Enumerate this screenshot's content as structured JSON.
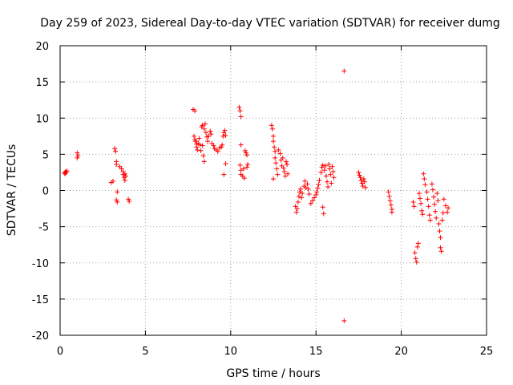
{
  "chart_data": {
    "type": "scatter",
    "title": "Day 259 of 2023, Sidereal Day-to-day VTEC variation (SDTVAR) for receiver dumg",
    "xlabel": "GPS time / hours",
    "ylabel": "SDTVAR / TECUs",
    "xlim": [
      0,
      25
    ],
    "ylim": [
      -20,
      20
    ],
    "xticks": [
      0,
      5,
      10,
      15,
      20,
      25
    ],
    "yticks": [
      -20,
      -15,
      -10,
      -5,
      0,
      5,
      10,
      15,
      20
    ],
    "grid": true,
    "marker": "+",
    "color": "#ff0000",
    "series": [
      {
        "name": "SDTVAR",
        "points": [
          [
            0.25,
            2.4
          ],
          [
            0.3,
            2.6
          ],
          [
            0.35,
            2.5
          ],
          [
            0.4,
            2.7
          ],
          [
            0.3,
            2.3
          ],
          [
            1.0,
            5.2
          ],
          [
            1.05,
            4.8
          ],
          [
            1.0,
            4.5
          ],
          [
            3.0,
            1.1
          ],
          [
            3.1,
            1.3
          ],
          [
            3.2,
            5.8
          ],
          [
            3.25,
            5.4
          ],
          [
            3.3,
            4.0
          ],
          [
            3.3,
            3.6
          ],
          [
            3.35,
            -0.2
          ],
          [
            3.3,
            -1.3
          ],
          [
            3.35,
            -1.6
          ],
          [
            3.5,
            3.3
          ],
          [
            3.6,
            3.0
          ],
          [
            3.7,
            2.6
          ],
          [
            3.7,
            2.2
          ],
          [
            3.75,
            1.8
          ],
          [
            3.8,
            1.4
          ],
          [
            3.85,
            2.0
          ],
          [
            3.8,
            2.3
          ],
          [
            4.0,
            -1.2
          ],
          [
            4.05,
            -1.5
          ],
          [
            7.8,
            11.2
          ],
          [
            7.9,
            11.0
          ],
          [
            7.85,
            7.5
          ],
          [
            7.9,
            7.0
          ],
          [
            7.95,
            6.8
          ],
          [
            8.0,
            6.4
          ],
          [
            8.0,
            6.0
          ],
          [
            8.05,
            5.6
          ],
          [
            8.1,
            6.5
          ],
          [
            8.15,
            7.2
          ],
          [
            8.2,
            6.3
          ],
          [
            8.25,
            5.5
          ],
          [
            8.3,
            8.8
          ],
          [
            8.35,
            9.0
          ],
          [
            8.35,
            6.2
          ],
          [
            8.4,
            4.8
          ],
          [
            8.45,
            4.0
          ],
          [
            8.45,
            8.5
          ],
          [
            8.5,
            9.2
          ],
          [
            8.55,
            8.0
          ],
          [
            8.6,
            7.4
          ],
          [
            8.65,
            6.8
          ],
          [
            8.7,
            7.5
          ],
          [
            8.8,
            8.2
          ],
          [
            8.85,
            7.8
          ],
          [
            8.9,
            6.5
          ],
          [
            9.0,
            6.2
          ],
          [
            9.05,
            5.8
          ],
          [
            9.15,
            5.6
          ],
          [
            9.25,
            5.4
          ],
          [
            9.35,
            5.9
          ],
          [
            9.45,
            6.0
          ],
          [
            9.5,
            6.3
          ],
          [
            9.55,
            7.5
          ],
          [
            9.6,
            8.0
          ],
          [
            9.65,
            8.3
          ],
          [
            9.7,
            7.6
          ],
          [
            9.7,
            3.7
          ],
          [
            9.6,
            2.2
          ],
          [
            10.5,
            11.5
          ],
          [
            10.55,
            11.0
          ],
          [
            10.6,
            10.2
          ],
          [
            10.6,
            6.3
          ],
          [
            10.55,
            3.5
          ],
          [
            10.6,
            2.8
          ],
          [
            10.6,
            2.2
          ],
          [
            10.7,
            2.0
          ],
          [
            10.75,
            3.0
          ],
          [
            10.8,
            1.7
          ],
          [
            10.85,
            5.5
          ],
          [
            10.9,
            5.2
          ],
          [
            10.95,
            4.9
          ],
          [
            10.95,
            3.2
          ],
          [
            11.0,
            3.6
          ],
          [
            12.4,
            9.0
          ],
          [
            12.45,
            8.5
          ],
          [
            12.5,
            7.5
          ],
          [
            12.5,
            6.8
          ],
          [
            12.55,
            6.0
          ],
          [
            12.6,
            5.4
          ],
          [
            12.6,
            4.5
          ],
          [
            12.65,
            3.8
          ],
          [
            12.7,
            3.0
          ],
          [
            12.75,
            2.2
          ],
          [
            12.5,
            1.6
          ],
          [
            12.8,
            5.6
          ],
          [
            12.9,
            5.1
          ],
          [
            12.95,
            4.2
          ],
          [
            13.0,
            3.4
          ],
          [
            13.05,
            4.5
          ],
          [
            13.1,
            3.1
          ],
          [
            13.15,
            2.6
          ],
          [
            13.2,
            2.0
          ],
          [
            13.25,
            4.0
          ],
          [
            13.3,
            3.6
          ],
          [
            13.35,
            2.3
          ],
          [
            13.8,
            -2.2
          ],
          [
            13.85,
            -3.0
          ],
          [
            13.9,
            -2.5
          ],
          [
            13.95,
            -1.6
          ],
          [
            14.0,
            -0.8
          ],
          [
            14.05,
            -0.2
          ],
          [
            14.1,
            0.2
          ],
          [
            14.15,
            -1.0
          ],
          [
            14.2,
            -0.4
          ],
          [
            14.3,
            0.6
          ],
          [
            14.35,
            1.3
          ],
          [
            14.4,
            0.4
          ],
          [
            14.5,
            0.9
          ],
          [
            14.55,
            0.2
          ],
          [
            14.6,
            -0.5
          ],
          [
            14.7,
            -1.8
          ],
          [
            14.8,
            -1.4
          ],
          [
            14.9,
            -1.0
          ],
          [
            15.0,
            -0.6
          ],
          [
            15.05,
            -0.2
          ],
          [
            15.1,
            0.3
          ],
          [
            15.15,
            0.8
          ],
          [
            15.2,
            1.4
          ],
          [
            15.3,
            2.5
          ],
          [
            15.35,
            3.2
          ],
          [
            15.4,
            3.5
          ],
          [
            15.4,
            -2.3
          ],
          [
            15.45,
            -3.2
          ],
          [
            15.5,
            2.8
          ],
          [
            15.55,
            3.4
          ],
          [
            15.6,
            2.0
          ],
          [
            15.65,
            1.2
          ],
          [
            15.7,
            0.5
          ],
          [
            15.75,
            3.6
          ],
          [
            15.8,
            3.0
          ],
          [
            15.85,
            2.2
          ],
          [
            15.9,
            1.0
          ],
          [
            15.95,
            3.3
          ],
          [
            16.0,
            2.6
          ],
          [
            16.05,
            1.8
          ],
          [
            16.65,
            16.5
          ],
          [
            16.65,
            -18.0
          ],
          [
            17.5,
            2.5
          ],
          [
            17.55,
            2.1
          ],
          [
            17.6,
            1.8
          ],
          [
            17.65,
            1.4
          ],
          [
            17.7,
            1.0
          ],
          [
            17.75,
            0.6
          ],
          [
            17.8,
            1.6
          ],
          [
            17.85,
            1.2
          ],
          [
            17.9,
            0.4
          ],
          [
            19.25,
            -0.2
          ],
          [
            19.3,
            -0.8
          ],
          [
            19.35,
            -1.4
          ],
          [
            19.4,
            -2.0
          ],
          [
            19.45,
            -2.6
          ],
          [
            19.45,
            -3.0
          ],
          [
            20.7,
            -1.6
          ],
          [
            20.75,
            -2.2
          ],
          [
            20.8,
            -8.6
          ],
          [
            20.85,
            -9.4
          ],
          [
            20.9,
            -9.9
          ],
          [
            20.95,
            -7.8
          ],
          [
            21.0,
            -7.3
          ],
          [
            21.05,
            -0.4
          ],
          [
            21.1,
            -1.1
          ],
          [
            21.15,
            -1.8
          ],
          [
            21.2,
            -2.8
          ],
          [
            21.25,
            -3.3
          ],
          [
            21.3,
            2.3
          ],
          [
            21.35,
            1.6
          ],
          [
            21.4,
            0.8
          ],
          [
            21.5,
            -0.2
          ],
          [
            21.55,
            -1.2
          ],
          [
            21.6,
            -2.2
          ],
          [
            21.65,
            -3.4
          ],
          [
            21.7,
            -4.1
          ],
          [
            21.8,
            0.9
          ],
          [
            21.85,
            0.1
          ],
          [
            21.9,
            -0.9
          ],
          [
            21.95,
            -1.9
          ],
          [
            22.0,
            -2.9
          ],
          [
            22.05,
            -3.8
          ],
          [
            22.1,
            -0.4
          ],
          [
            22.15,
            -1.4
          ],
          [
            22.2,
            -4.6
          ],
          [
            22.25,
            -5.6
          ],
          [
            22.3,
            -6.5
          ],
          [
            22.3,
            -7.9
          ],
          [
            22.35,
            -8.4
          ],
          [
            22.4,
            -4.1
          ],
          [
            22.45,
            -3.1
          ],
          [
            22.5,
            -1.2
          ],
          [
            22.6,
            -2.1
          ],
          [
            22.7,
            -3.0
          ],
          [
            22.75,
            -2.4
          ]
        ]
      }
    ]
  }
}
